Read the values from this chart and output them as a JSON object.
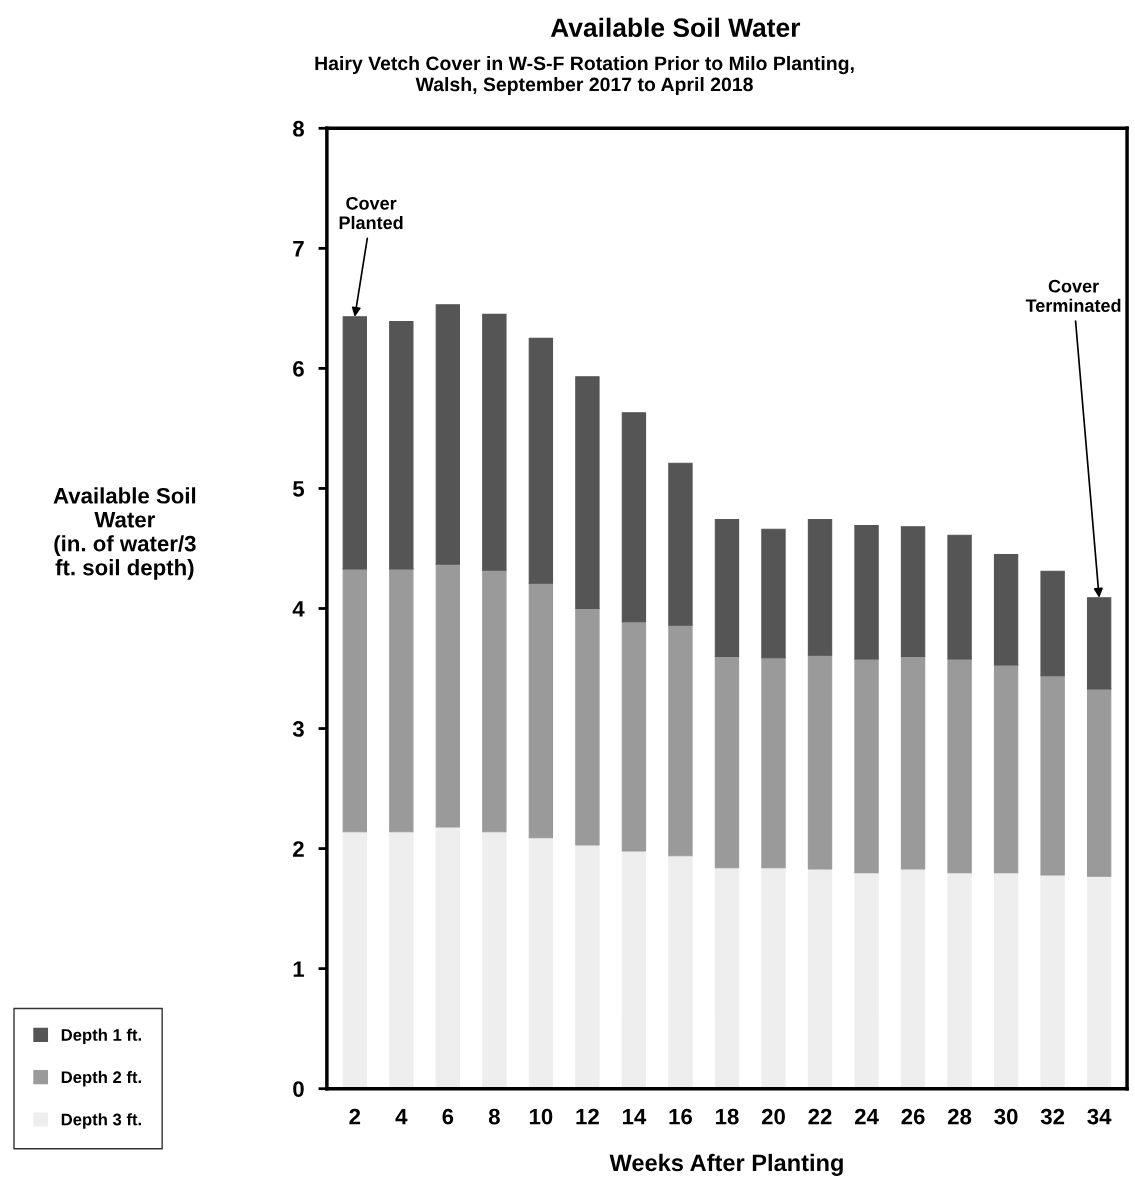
{
  "chart_data": {
    "type": "bar",
    "stacked": true,
    "title": "Available Soil Water",
    "subtitle": "Hairy Vetch Cover in W-S-F Rotation Prior to Milo Planting,\nWalsh, September 2017 to April 2018",
    "xlabel": "Weeks After Planting",
    "ylabel": "Available Soil\nWater\n(in. of water/3\nft. soil depth)",
    "categories": [
      "2",
      "4",
      "6",
      "8",
      "10",
      "12",
      "14",
      "16",
      "18",
      "20",
      "22",
      "24",
      "26",
      "28",
      "30",
      "32",
      "34"
    ],
    "series": [
      {
        "name": "Depth 3 ft.",
        "color": "#eeeeee",
        "values": [
          2.14,
          2.14,
          2.18,
          2.14,
          2.09,
          2.03,
          1.98,
          1.94,
          1.84,
          1.84,
          1.83,
          1.8,
          1.83,
          1.8,
          1.8,
          1.78,
          1.77
        ]
      },
      {
        "name": "Depth 2 ft.",
        "color": "#9a9a9a",
        "values": [
          2.19,
          2.19,
          2.19,
          2.18,
          2.12,
          1.97,
          1.91,
          1.92,
          1.76,
          1.75,
          1.78,
          1.78,
          1.77,
          1.78,
          1.73,
          1.66,
          1.56
        ]
      },
      {
        "name": "Depth 1 ft.",
        "color": "#555555",
        "values": [
          2.1,
          2.06,
          2.16,
          2.13,
          2.04,
          1.93,
          1.74,
          1.35,
          1.14,
          1.07,
          1.13,
          1.11,
          1.08,
          1.03,
          0.92,
          0.87,
          0.76
        ]
      }
    ],
    "ylim": [
      0,
      8
    ],
    "yticks": [
      0,
      1,
      2,
      3,
      4,
      5,
      6,
      7,
      8
    ],
    "grid": false,
    "legend": "bottom left",
    "annotations": [
      {
        "text": "Cover\nPlanted",
        "x": "2",
        "y": 6.43
      },
      {
        "text": "Cover\nTerminated",
        "x": "34",
        "y": 4.09
      }
    ]
  }
}
